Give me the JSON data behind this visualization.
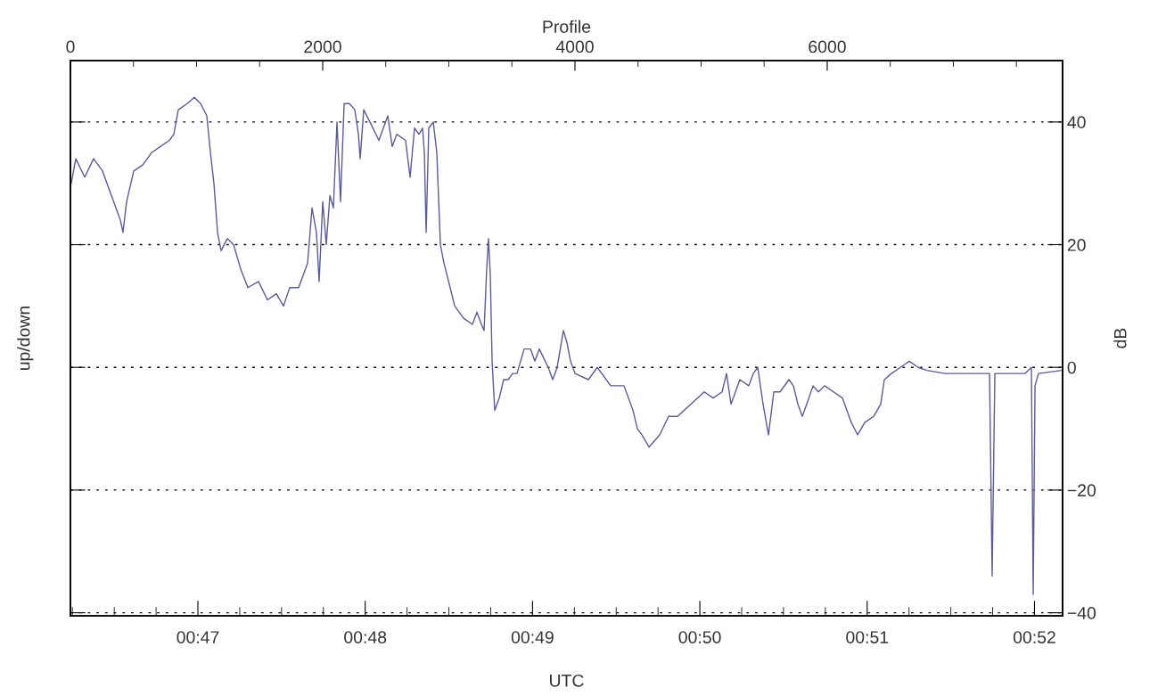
{
  "chart_data": {
    "type": "line",
    "xlabel": "UTC",
    "ylabel": "up/down",
    "y2label": "dB",
    "x2label": "Profile",
    "xlim": [
      0.770635,
      0.869465
    ],
    "xticks": [
      {
        "value": 0.770833,
        "label": null
      },
      {
        "value": 0.775,
        "label": null
      },
      {
        "value": 0.779167,
        "label": null
      },
      {
        "value": 0.783333,
        "label": "00:47"
      },
      {
        "value": 0.7875,
        "label": null
      },
      {
        "value": 0.791667,
        "label": null
      },
      {
        "value": 0.795833,
        "label": null
      },
      {
        "value": 0.8,
        "label": "00:48"
      },
      {
        "value": 0.804167,
        "label": null
      },
      {
        "value": 0.808333,
        "label": null
      },
      {
        "value": 0.8125,
        "label": null
      },
      {
        "value": 0.816667,
        "label": "00:49"
      },
      {
        "value": 0.820833,
        "label": null
      },
      {
        "value": 0.825,
        "label": null
      },
      {
        "value": 0.829167,
        "label": null
      },
      {
        "value": 0.833333,
        "label": "00:50"
      },
      {
        "value": 0.8375,
        "label": null
      },
      {
        "value": 0.841667,
        "label": null
      },
      {
        "value": 0.845833,
        "label": null
      },
      {
        "value": 0.85,
        "label": "00:51"
      },
      {
        "value": 0.854167,
        "label": null
      },
      {
        "value": 0.858333,
        "label": null
      },
      {
        "value": 0.8625,
        "label": null
      },
      {
        "value": 0.866667,
        "label": "00:52"
      }
    ],
    "x2lim": [
      0,
      7866
    ],
    "x2ticks": [
      0,
      {
        "value": 500,
        "label": null
      },
      {
        "value": 1000,
        "label": null
      },
      {
        "value": 1500,
        "label": null
      },
      2000,
      {
        "value": 2500,
        "label": null
      },
      {
        "value": 3000,
        "label": null
      },
      {
        "value": 3500,
        "label": null
      },
      4000,
      {
        "value": 4500,
        "label": null
      },
      {
        "value": 5000,
        "label": null
      },
      {
        "value": 5500,
        "label": null
      },
      6000,
      {
        "value": 6500,
        "label": null
      },
      {
        "value": 7000,
        "label": null
      },
      {
        "value": 7500,
        "label": null
      }
    ],
    "y2lim": [
      -40.5,
      50
    ],
    "y2ticks": [
      {
        "value": -40,
        "label": "−40"
      },
      {
        "value": -20,
        "label": "−20"
      },
      0,
      20,
      40
    ],
    "ref_lines": [
      {
        "axis": "y2",
        "value": -40,
        "label": null,
        "color": "#000000",
        "line_style": "dotted"
      },
      {
        "axis": "y2",
        "value": -20,
        "label": null,
        "color": "#000000",
        "line_style": "dotted"
      },
      {
        "axis": "y2",
        "value": 0,
        "label": null,
        "color": "#000000",
        "line_style": "dotted"
      },
      {
        "axis": "y2",
        "value": 20,
        "label": null,
        "color": "#000000",
        "line_style": "dotted"
      },
      {
        "axis": "y2",
        "value": 40,
        "label": null,
        "color": "#000000",
        "line_style": "dotted"
      }
    ],
    "marker": "none",
    "line_style": "solid",
    "series": [
      {
        "color": "#5b5b99",
        "axis": "y2",
        "x": [
          0.77072,
          0.77117,
          0.77206,
          0.77294,
          0.77383,
          0.77472,
          0.77561,
          0.77587,
          0.77623,
          0.77694,
          0.77783,
          0.77872,
          0.7796,
          0.78049,
          0.78094,
          0.78138,
          0.78227,
          0.78298,
          0.7836,
          0.78422,
          0.78458,
          0.78493,
          0.78529,
          0.78564,
          0.78626,
          0.78689,
          0.7876,
          0.78831,
          0.78937,
          0.79026,
          0.79115,
          0.79186,
          0.79248,
          0.79337,
          0.79426,
          0.7947,
          0.79514,
          0.79541,
          0.79577,
          0.79612,
          0.79648,
          0.79683,
          0.79719,
          0.79754,
          0.7979,
          0.79843,
          0.79896,
          0.79932,
          0.7995,
          0.79985,
          0.80047,
          0.80136,
          0.80225,
          0.80269,
          0.80314,
          0.80402,
          0.80447,
          0.80491,
          0.80536,
          0.80571,
          0.80589,
          0.80607,
          0.80633,
          0.80678,
          0.80713,
          0.80749,
          0.80784,
          0.80846,
          0.80891,
          0.8098,
          0.81068,
          0.81113,
          0.81157,
          0.81184,
          0.8121,
          0.81228,
          0.81246,
          0.81264,
          0.8129,
          0.81335,
          0.81379,
          0.81424,
          0.81468,
          0.81512,
          0.81583,
          0.81646,
          0.8169,
          0.81734,
          0.81823,
          0.81868,
          0.81912,
          0.81974,
          0.8201,
          0.82045,
          0.8209,
          0.82223,
          0.82312,
          0.82445,
          0.82578,
          0.82667,
          0.82711,
          0.82756,
          0.82827,
          0.82933,
          0.83022,
          0.83111,
          0.83244,
          0.83377,
          0.83466,
          0.83555,
          0.83599,
          0.83644,
          0.83732,
          0.83821,
          0.83866,
          0.8391,
          0.83963,
          0.84017,
          0.8407,
          0.84132,
          0.84221,
          0.84265,
          0.8431,
          0.84354,
          0.84398,
          0.84461,
          0.84514,
          0.84576,
          0.84665,
          0.84754,
          0.84842,
          0.84905,
          0.84976,
          0.85064,
          0.85135,
          0.85171,
          0.85242,
          0.85331,
          0.8542,
          0.85508,
          0.85597,
          0.85775,
          0.85952,
          0.8613,
          0.86219,
          0.86245,
          0.86272,
          0.86485,
          0.86574,
          0.86636,
          0.86654,
          0.86672,
          0.86707,
          0.86929
        ],
        "values": [
          30,
          34,
          31,
          34,
          32,
          28,
          24,
          22,
          27,
          32,
          33,
          35,
          36,
          37,
          38,
          42,
          43,
          44,
          43,
          41,
          35,
          30,
          22,
          19,
          21,
          20,
          16,
          13,
          14,
          11,
          12,
          10,
          13,
          13,
          17,
          26,
          22,
          14,
          27,
          20,
          28,
          26,
          40,
          27,
          43,
          43,
          42,
          38,
          34,
          42,
          40,
          37,
          41,
          36,
          38,
          37,
          31,
          39,
          38,
          39,
          35,
          22,
          39,
          40,
          35,
          20,
          17,
          13,
          10,
          8,
          7,
          9,
          7,
          6,
          16,
          21,
          15,
          1,
          -7,
          -5,
          -2,
          -2,
          -1,
          -1,
          3,
          3,
          1,
          3,
          0,
          -2,
          0,
          6,
          4,
          1,
          -1,
          -2,
          0,
          -3,
          -3,
          -7,
          -10,
          -11,
          -13,
          -11,
          -8,
          -8,
          -6,
          -4,
          -5,
          -4,
          -1,
          -6,
          -2,
          -3,
          -1,
          0,
          -6,
          -11,
          -4,
          -4,
          -2,
          -3,
          -6,
          -8,
          -6,
          -3,
          -4,
          -3,
          -4,
          -5,
          -9,
          -11,
          -9,
          -8,
          -6,
          -2,
          -1,
          0,
          1,
          0,
          -0.5,
          -1,
          -1,
          -1,
          -1,
          -34,
          -1,
          -1,
          -1,
          0,
          -37,
          -3,
          -1,
          -0.5
        ]
      }
    ]
  }
}
